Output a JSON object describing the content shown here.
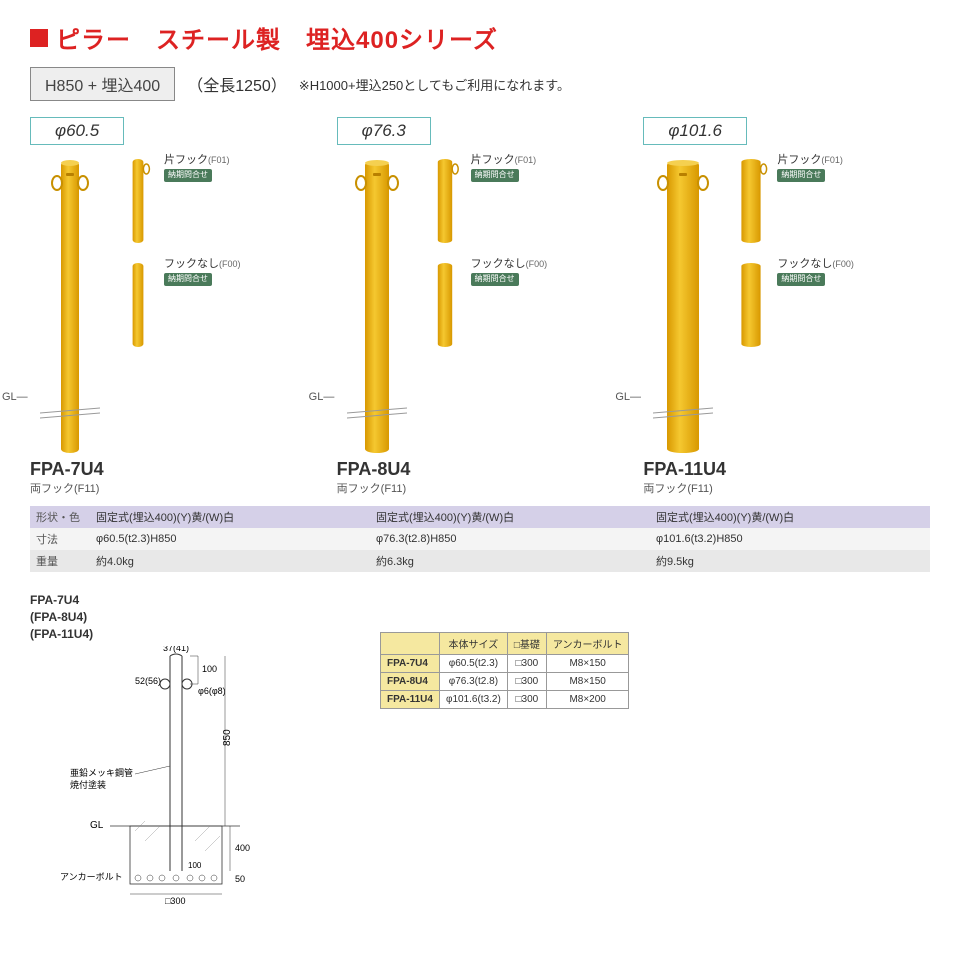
{
  "title": "ピラー　スチール製　埋込400シリーズ",
  "subtitle_box": "H850 + 埋込400",
  "subtitle_paren": "（全長1250）",
  "subtitle_note": "※H1000+埋込250としてもご利用になれます。",
  "gl": "GL",
  "variants": {
    "v1_label": "片フック",
    "v1_code": "(F01)",
    "v2_label": "フックなし",
    "v2_code": "(F00)",
    "badge": "納期問合せ"
  },
  "hook_main": "両フック(F11)",
  "spec_labels": {
    "shape": "形状・色",
    "dim": "寸法",
    "weight": "重量"
  },
  "products": [
    {
      "dia": "φ60.5",
      "model": "FPA-7U4",
      "pillar_w": 18,
      "shape": "固定式(埋込400)(Y)黄/(W)白",
      "dim": "φ60.5(t2.3)H850",
      "weight": "約4.0kg"
    },
    {
      "dia": "φ76.3",
      "model": "FPA-8U4",
      "pillar_w": 24,
      "shape": "固定式(埋込400)(Y)黄/(W)白",
      "dim": "φ76.3(t2.8)H850",
      "weight": "約6.3kg"
    },
    {
      "dia": "φ101.6",
      "model": "FPA-11U4",
      "pillar_w": 32,
      "shape": "固定式(埋込400)(Y)黄/(W)白",
      "dim": "φ101.6(t3.2)H850",
      "weight": "約9.5kg"
    }
  ],
  "diagram": {
    "title1": "FPA-7U4",
    "title2": "(FPA-8U4)",
    "title3": "(FPA-11U4)",
    "top_dim": "37(41)",
    "side_52": "52(56)",
    "hook_dia": "φ6(φ8)",
    "h850": "850",
    "h100": "100",
    "mat1": "亜鉛メッキ鋼管",
    "mat2": "焼付塗装",
    "gl": "GL",
    "embed400": "400",
    "embed100": "100",
    "embed50": "50",
    "anchor": "アンカーボルト",
    "base300": "□300"
  },
  "size_table": {
    "headers": [
      "",
      "本体サイズ",
      "□基礎",
      "アンカーボルト"
    ],
    "rows": [
      [
        "FPA-7U4",
        "φ60.5(t2.3)",
        "□300",
        "M8×150"
      ],
      [
        "FPA-8U4",
        "φ76.3(t2.8)",
        "□300",
        "M8×150"
      ],
      [
        "FPA-11U4",
        "φ101.6(t3.2)",
        "□300",
        "M8×200"
      ]
    ]
  },
  "colors": {
    "pillar": "#f5b800",
    "pillar_dark": "#d89800"
  }
}
